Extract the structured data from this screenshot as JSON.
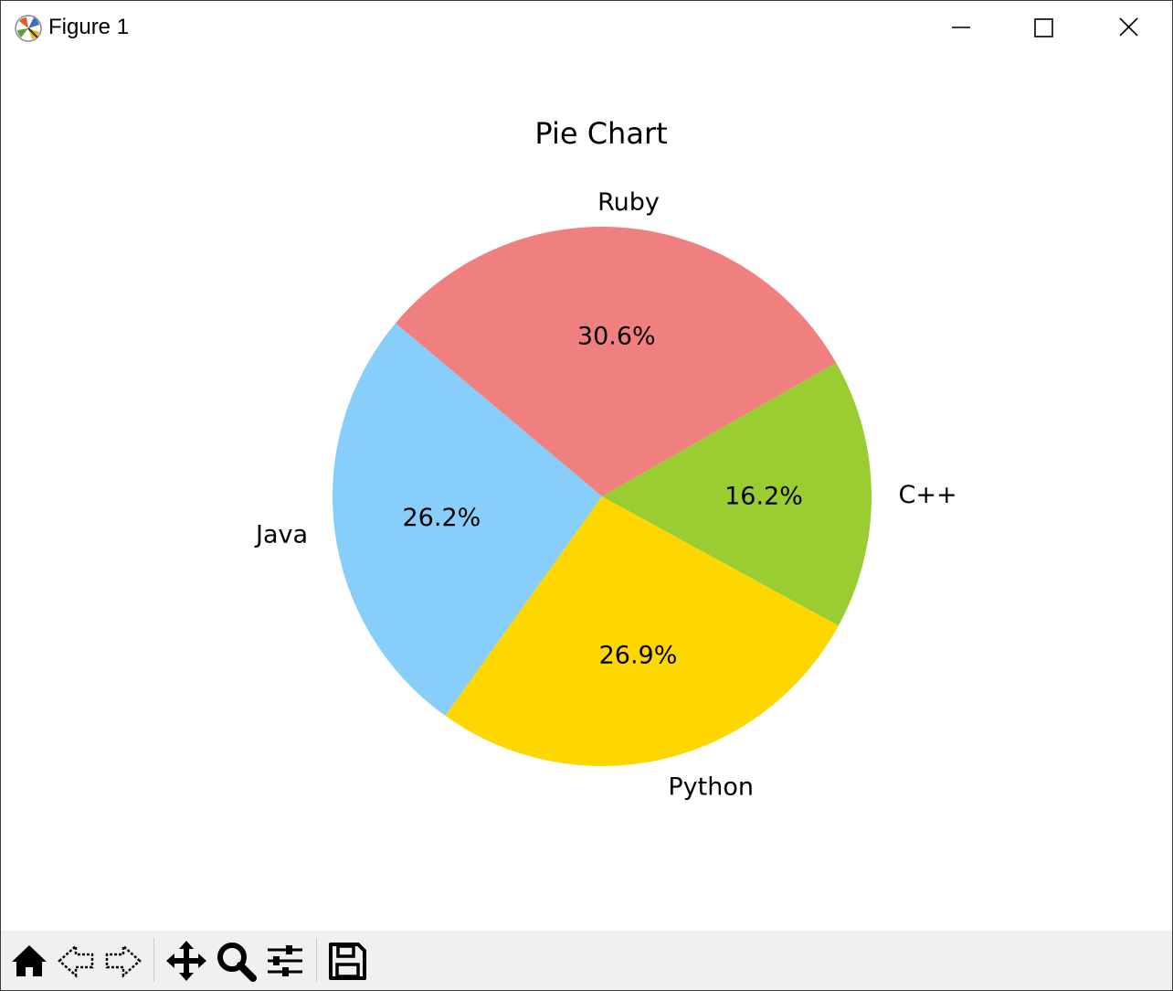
{
  "window": {
    "title": "Figure 1"
  },
  "toolbar": {
    "items": [
      {
        "name": "home-icon"
      },
      {
        "name": "back-icon"
      },
      {
        "name": "forward-icon"
      },
      {
        "name": "pan-icon"
      },
      {
        "name": "zoom-icon"
      },
      {
        "name": "configure-subplots-icon"
      },
      {
        "name": "save-icon"
      }
    ]
  },
  "chart_data": {
    "type": "pie",
    "title": "Pie Chart",
    "start_angle": 140,
    "direction": "counterclockwise",
    "slices": [
      {
        "label": "Java",
        "value": 26.2,
        "pct_label": "26.2%",
        "color": "#87CEFA"
      },
      {
        "label": "Python",
        "value": 26.9,
        "pct_label": "26.9%",
        "color": "#FFD700"
      },
      {
        "label": "C++",
        "value": 16.2,
        "pct_label": "16.2%",
        "color": "#9ACD32"
      },
      {
        "label": "Ruby",
        "value": 30.6,
        "pct_label": "30.6%",
        "color": "#F08080"
      }
    ]
  }
}
